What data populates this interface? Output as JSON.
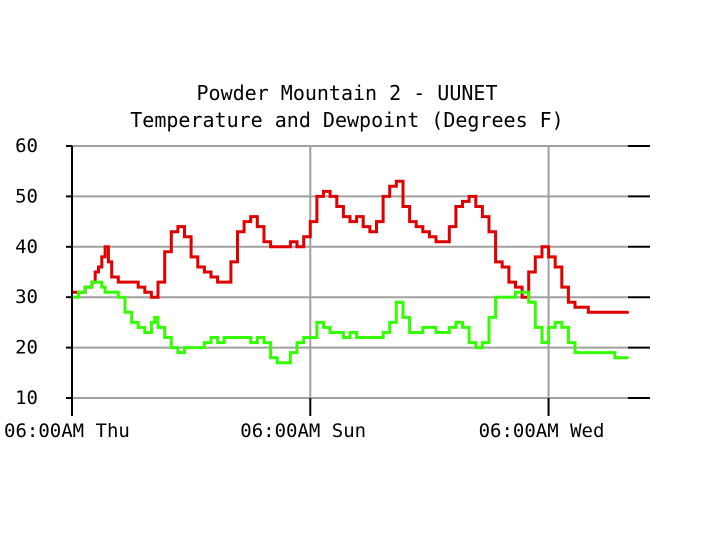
{
  "chart_data": {
    "type": "line",
    "title": "Powder Mountain 2 - UUNET",
    "subtitle": "Temperature and Dewpoint (Degrees F)",
    "ylim": [
      10,
      60
    ],
    "yticks": [
      10,
      20,
      30,
      40,
      50,
      60
    ],
    "y_tick_labels": [
      "10",
      "20",
      "30",
      "40",
      "50",
      "60"
    ],
    "x_tick_labels": [
      "06:00AM Thu",
      "06:00AM Sun",
      "06:00AM Wed"
    ],
    "x_tick_hours": [
      0,
      72,
      144
    ],
    "xlim": [
      0,
      168
    ],
    "grid": true,
    "colors": {
      "temperature": "#e00000",
      "dewpoint": "#33ff00",
      "grid": "#a0a0a0",
      "axis": "#000000"
    },
    "series": [
      {
        "key": "temperature",
        "color": "#e00000",
        "x": [
          0,
          2,
          4,
          6,
          7,
          8,
          9,
          10,
          11,
          12,
          14,
          16,
          18,
          20,
          22,
          24,
          25,
          26,
          28,
          30,
          32,
          34,
          36,
          38,
          40,
          42,
          44,
          46,
          48,
          50,
          52,
          54,
          56,
          58,
          60,
          62,
          64,
          66,
          68,
          70,
          72,
          74,
          76,
          78,
          80,
          82,
          84,
          86,
          88,
          90,
          92,
          94,
          96,
          98,
          100,
          102,
          104,
          106,
          108,
          110,
          112,
          114,
          116,
          118,
          120,
          122,
          124,
          126,
          128,
          130,
          132,
          134,
          136,
          138,
          140,
          142,
          144,
          146,
          148,
          150,
          152,
          154,
          156,
          158,
          160,
          162,
          164,
          166,
          168
        ],
        "y": [
          31,
          31,
          32,
          33,
          35,
          36,
          38,
          40,
          37,
          34,
          33,
          33,
          33,
          32,
          31,
          30,
          30,
          33,
          39,
          43,
          44,
          42,
          38,
          36,
          35,
          34,
          33,
          33,
          37,
          43,
          45,
          46,
          44,
          41,
          40,
          40,
          40,
          41,
          40,
          42,
          45,
          50,
          51,
          50,
          48,
          46,
          45,
          46,
          44,
          43,
          45,
          50,
          52,
          53,
          48,
          45,
          44,
          43,
          42,
          41,
          41,
          44,
          48,
          49,
          50,
          48,
          46,
          43,
          37,
          36,
          33,
          32,
          30,
          35,
          38,
          40,
          38,
          36,
          32,
          29,
          28,
          28,
          27,
          27,
          27,
          27,
          27,
          27,
          27
        ]
      },
      {
        "key": "dewpoint",
        "color": "#33ff00",
        "x": [
          0,
          2,
          4,
          6,
          7,
          8,
          9,
          10,
          11,
          12,
          14,
          16,
          18,
          20,
          22,
          24,
          25,
          26,
          28,
          30,
          32,
          34,
          36,
          38,
          40,
          42,
          44,
          46,
          48,
          50,
          52,
          54,
          56,
          58,
          60,
          62,
          64,
          66,
          68,
          70,
          72,
          74,
          76,
          78,
          80,
          82,
          84,
          86,
          88,
          90,
          92,
          94,
          96,
          98,
          100,
          102,
          104,
          106,
          108,
          110,
          112,
          114,
          116,
          118,
          120,
          122,
          124,
          126,
          128,
          130,
          132,
          134,
          136,
          138,
          140,
          142,
          144,
          146,
          148,
          150,
          152,
          154,
          156,
          158,
          160,
          162,
          164,
          166,
          168
        ],
        "y": [
          30,
          31,
          32,
          33,
          33,
          33,
          32,
          31,
          31,
          31,
          30,
          27,
          25,
          24,
          23,
          25,
          26,
          24,
          22,
          20,
          19,
          20,
          20,
          20,
          21,
          22,
          21,
          22,
          22,
          22,
          22,
          21,
          22,
          21,
          18,
          17,
          17,
          19,
          21,
          22,
          22,
          25,
          24,
          23,
          23,
          22,
          23,
          22,
          22,
          22,
          22,
          23,
          25,
          29,
          26,
          23,
          23,
          24,
          24,
          23,
          23,
          24,
          25,
          24,
          21,
          20,
          21,
          26,
          30,
          30,
          30,
          31,
          31,
          29,
          24,
          21,
          24,
          25,
          24,
          21,
          19,
          19,
          19,
          19,
          19,
          19,
          18,
          18,
          18
        ]
      }
    ]
  }
}
